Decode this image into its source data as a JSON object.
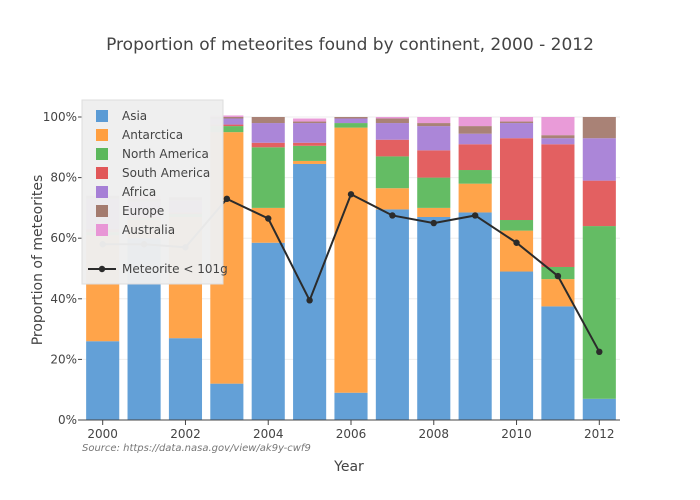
{
  "chart_data": {
    "type": "bar",
    "stacked": true,
    "title": "Proportion of meteorites found by continent, 2000 - 2012",
    "xlabel": "Year",
    "ylabel": "Proportion of meteorites",
    "x": [
      2000,
      2001,
      2002,
      2003,
      2004,
      2005,
      2006,
      2007,
      2008,
      2009,
      2010,
      2011,
      2012
    ],
    "x_tick_labels": [
      "2000",
      "2002",
      "2004",
      "2006",
      "2008",
      "2010",
      "2012"
    ],
    "x_tick_values": [
      2000,
      2002,
      2004,
      2006,
      2008,
      2010,
      2012
    ],
    "y_tick_labels": [
      "0%",
      "20%",
      "40%",
      "60%",
      "80%",
      "100%"
    ],
    "y_tick_values": [
      0,
      0.2,
      0.4,
      0.6,
      0.8,
      1.0
    ],
    "ylim": [
      0,
      1.0
    ],
    "grid": "horizontal",
    "legend_position": "top-left",
    "series": [
      {
        "name": "Asia",
        "color": "#5b9bd5",
        "values": [
          0.26,
          0.6,
          0.27,
          0.12,
          0.585,
          0.845,
          0.09,
          0.695,
          0.67,
          0.685,
          0.49,
          0.375,
          0.07
        ]
      },
      {
        "name": "Antarctica",
        "color": "#ff9f40",
        "values": [
          0.35,
          0.06,
          0.4,
          0.83,
          0.115,
          0.01,
          0.875,
          0.07,
          0.03,
          0.095,
          0.135,
          0.09,
          0.0
        ]
      },
      {
        "name": "North America",
        "color": "#5cb85c",
        "values": [
          0.01,
          0.005,
          0.01,
          0.02,
          0.2,
          0.05,
          0.015,
          0.105,
          0.1,
          0.045,
          0.035,
          0.04,
          0.57
        ]
      },
      {
        "name": "South America",
        "color": "#e15759",
        "values": [
          0.01,
          0.005,
          0.005,
          0.005,
          0.015,
          0.01,
          0.0,
          0.055,
          0.09,
          0.085,
          0.27,
          0.405,
          0.15
        ]
      },
      {
        "name": "Africa",
        "color": "#a67fd6",
        "values": [
          0.1,
          0.05,
          0.04,
          0.02,
          0.065,
          0.065,
          0.015,
          0.055,
          0.08,
          0.035,
          0.05,
          0.02,
          0.14
        ]
      },
      {
        "name": "Europe",
        "color": "#a47b6f",
        "values": [
          0.01,
          0.01,
          0.01,
          0.005,
          0.02,
          0.005,
          0.005,
          0.015,
          0.01,
          0.025,
          0.005,
          0.01,
          0.07
        ]
      },
      {
        "name": "Australia",
        "color": "#e896d6",
        "values": [
          0.0,
          0.01,
          0.0,
          0.005,
          0.0,
          0.01,
          0.0,
          0.005,
          0.02,
          0.03,
          0.015,
          0.06,
          0.0
        ]
      }
    ],
    "line_series": {
      "name": "Meteorite < 101g",
      "color": "#2b2b2b",
      "values": [
        0.58,
        0.58,
        0.57,
        0.73,
        0.665,
        0.395,
        0.745,
        0.675,
        0.65,
        0.675,
        0.585,
        0.475,
        0.225
      ]
    },
    "source_note": "Source: https://data.nasa.gov/view/ak9y-cwf9"
  }
}
